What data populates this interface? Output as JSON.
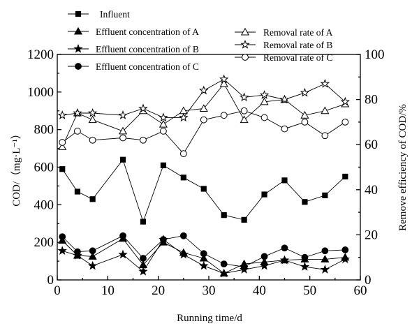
{
  "chart_data": {
    "type": "line",
    "x": [
      1,
      4,
      7,
      13,
      17,
      21,
      25,
      29,
      33,
      37,
      41,
      45,
      49,
      53,
      57
    ],
    "xlabel": "Running time/d",
    "xlim": [
      0,
      60
    ],
    "xticks": [
      "0",
      "10",
      "20",
      "30",
      "40",
      "50",
      "60"
    ],
    "ylabel": "COD/（mg·L⁻¹）",
    "ylim": [
      0,
      1200
    ],
    "yticks": [
      "0",
      "200",
      "400",
      "600",
      "800",
      "1000",
      "1200"
    ],
    "y2label": "Remove efficiency of COD/%",
    "y2lim": [
      0,
      100
    ],
    "y2ticks": [
      "0",
      "20",
      "40",
      "60",
      "80",
      "100"
    ],
    "grid": false,
    "series": [
      {
        "name": "Influent",
        "axis": "left",
        "marker": "square",
        "values": [
          590,
          470,
          430,
          640,
          310,
          610,
          545,
          485,
          345,
          320,
          455,
          530,
          415,
          450,
          550
        ]
      },
      {
        "name": "Effluent concentration of A",
        "axis": "left",
        "marker": "triangle",
        "values": [
          210,
          130,
          125,
          220,
          80,
          200,
          145,
          115,
          35,
          85,
          95,
          105,
          110,
          110,
          120
        ]
      },
      {
        "name": "Effluent concentration of B",
        "axis": "left",
        "marker": "star",
        "values": [
          155,
          130,
          75,
          135,
          45,
          215,
          135,
          75,
          35,
          55,
          75,
          105,
          70,
          55,
          110
        ]
      },
      {
        "name": "Effluent concentration of C",
        "axis": "left",
        "marker": "circle",
        "values": [
          230,
          150,
          155,
          235,
          115,
          215,
          235,
          140,
          85,
          70,
          125,
          170,
          120,
          155,
          160
        ]
      },
      {
        "name": "Removal rate of A",
        "axis": "right",
        "marker": "triangle-open",
        "values": [
          59,
          74,
          71,
          66,
          75,
          69,
          75,
          76,
          87,
          71,
          79,
          80,
          73,
          75,
          78
        ]
      },
      {
        "name": "Removal rate of B",
        "axis": "right",
        "marker": "star-open",
        "values": [
          73,
          74,
          74,
          73,
          76,
          72,
          72,
          84,
          89,
          81,
          82,
          80,
          83,
          87,
          79
        ]
      },
      {
        "name": "Removal rate of C",
        "axis": "right",
        "marker": "circle-open",
        "values": [
          61,
          66,
          62,
          63,
          62,
          66,
          56,
          71,
          73,
          75,
          72,
          67,
          70,
          64,
          70
        ]
      }
    ],
    "legend": {
      "placement": "top",
      "columns": 2
    }
  }
}
